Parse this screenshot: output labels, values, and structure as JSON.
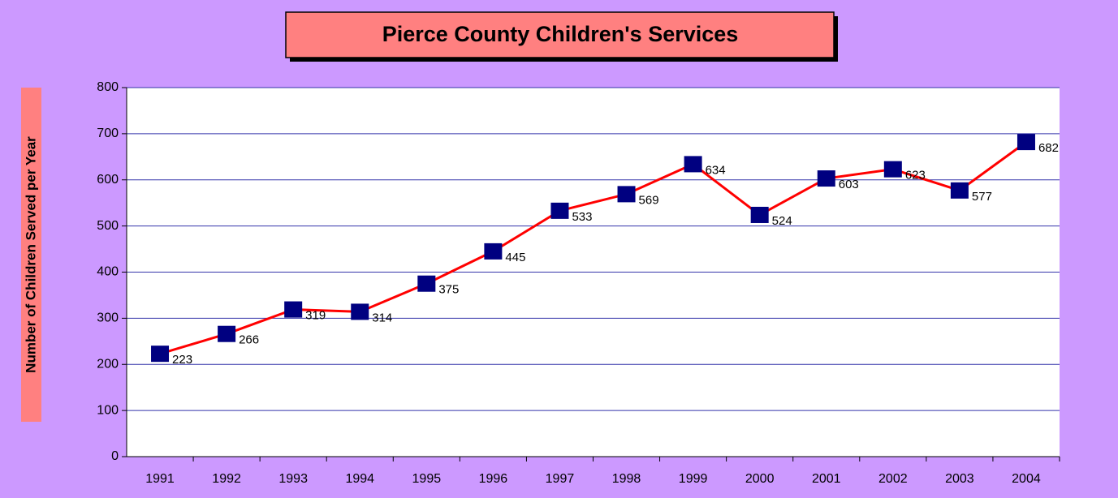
{
  "chart_data": {
    "type": "line",
    "title": "Pierce County Children's Services",
    "y_label": "Number of Children Served per Year",
    "categories": [
      "1991",
      "1992",
      "1993",
      "1994",
      "1995",
      "1996",
      "1997",
      "1998",
      "1999",
      "2000",
      "2001",
      "2002",
      "2003",
      "2004"
    ],
    "series": [
      {
        "color": "#ff0000",
        "marker_color": "#000080",
        "values": [
          223,
          266,
          319,
          314,
          375,
          445,
          533,
          569,
          634,
          524,
          603,
          623,
          577,
          682
        ]
      }
    ],
    "ylim": [
      0,
      800
    ],
    "yticks": [
      0,
      100,
      200,
      300,
      400,
      500,
      600,
      700,
      800
    ],
    "grid": true
  }
}
